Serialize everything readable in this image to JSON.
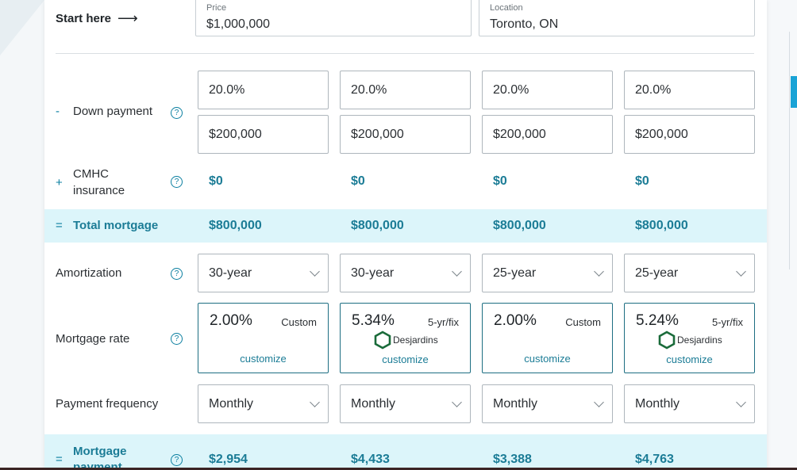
{
  "header": {
    "start_label": "Start here",
    "arrow_glyph": "⟶",
    "price_label": "Price",
    "price_value": "$1,000,000",
    "location_label": "Location",
    "location_value": "Toronto, ON"
  },
  "rows": {
    "down_payment": {
      "sign": "-",
      "label": "Down payment"
    },
    "cmhc": {
      "sign": "+",
      "label": "CMHC insurance"
    },
    "total": {
      "sign": "=",
      "label": "Total mortgage"
    },
    "amortization": {
      "label": "Amortization"
    },
    "rate": {
      "label": "Mortgage rate"
    },
    "frequency": {
      "label": "Payment frequency"
    },
    "payment": {
      "sign": "=",
      "label": "Mortgage payment"
    }
  },
  "help_glyph": "?",
  "columns": [
    {
      "down_pct": "20.0%",
      "down_amt": "$200,000",
      "cmhc": "$0",
      "total": "$800,000",
      "amortization": "30-year",
      "rate": "2.00%",
      "rate_tag": "Custom",
      "lender": "",
      "customize": "customize",
      "frequency": "Monthly",
      "payment": "$2,954"
    },
    {
      "down_pct": "20.0%",
      "down_amt": "$200,000",
      "cmhc": "$0",
      "total": "$800,000",
      "amortization": "30-year",
      "rate": "5.34%",
      "rate_tag": "5-yr/fix",
      "lender": "Desjardins",
      "customize": "customize",
      "frequency": "Monthly",
      "payment": "$4,433"
    },
    {
      "down_pct": "20.0%",
      "down_amt": "$200,000",
      "cmhc": "$0",
      "total": "$800,000",
      "amortization": "25-year",
      "rate": "2.00%",
      "rate_tag": "Custom",
      "lender": "",
      "customize": "customize",
      "frequency": "Monthly",
      "payment": "$3,388"
    },
    {
      "down_pct": "20.0%",
      "down_amt": "$200,000",
      "cmhc": "$0",
      "total": "$800,000",
      "amortization": "25-year",
      "rate": "5.24%",
      "rate_tag": "5-yr/fix",
      "lender": "Desjardins",
      "customize": "customize",
      "frequency": "Monthly",
      "payment": "$4,763"
    }
  ],
  "colors": {
    "accent": "#1b7c96",
    "band": "#dcf5fa",
    "lender_green": "#1a6b3a"
  },
  "icons": {
    "lender_logo": "desjardins-hexagon-icon",
    "chevron": "chevron-down-icon",
    "help": "question-circle-icon"
  }
}
